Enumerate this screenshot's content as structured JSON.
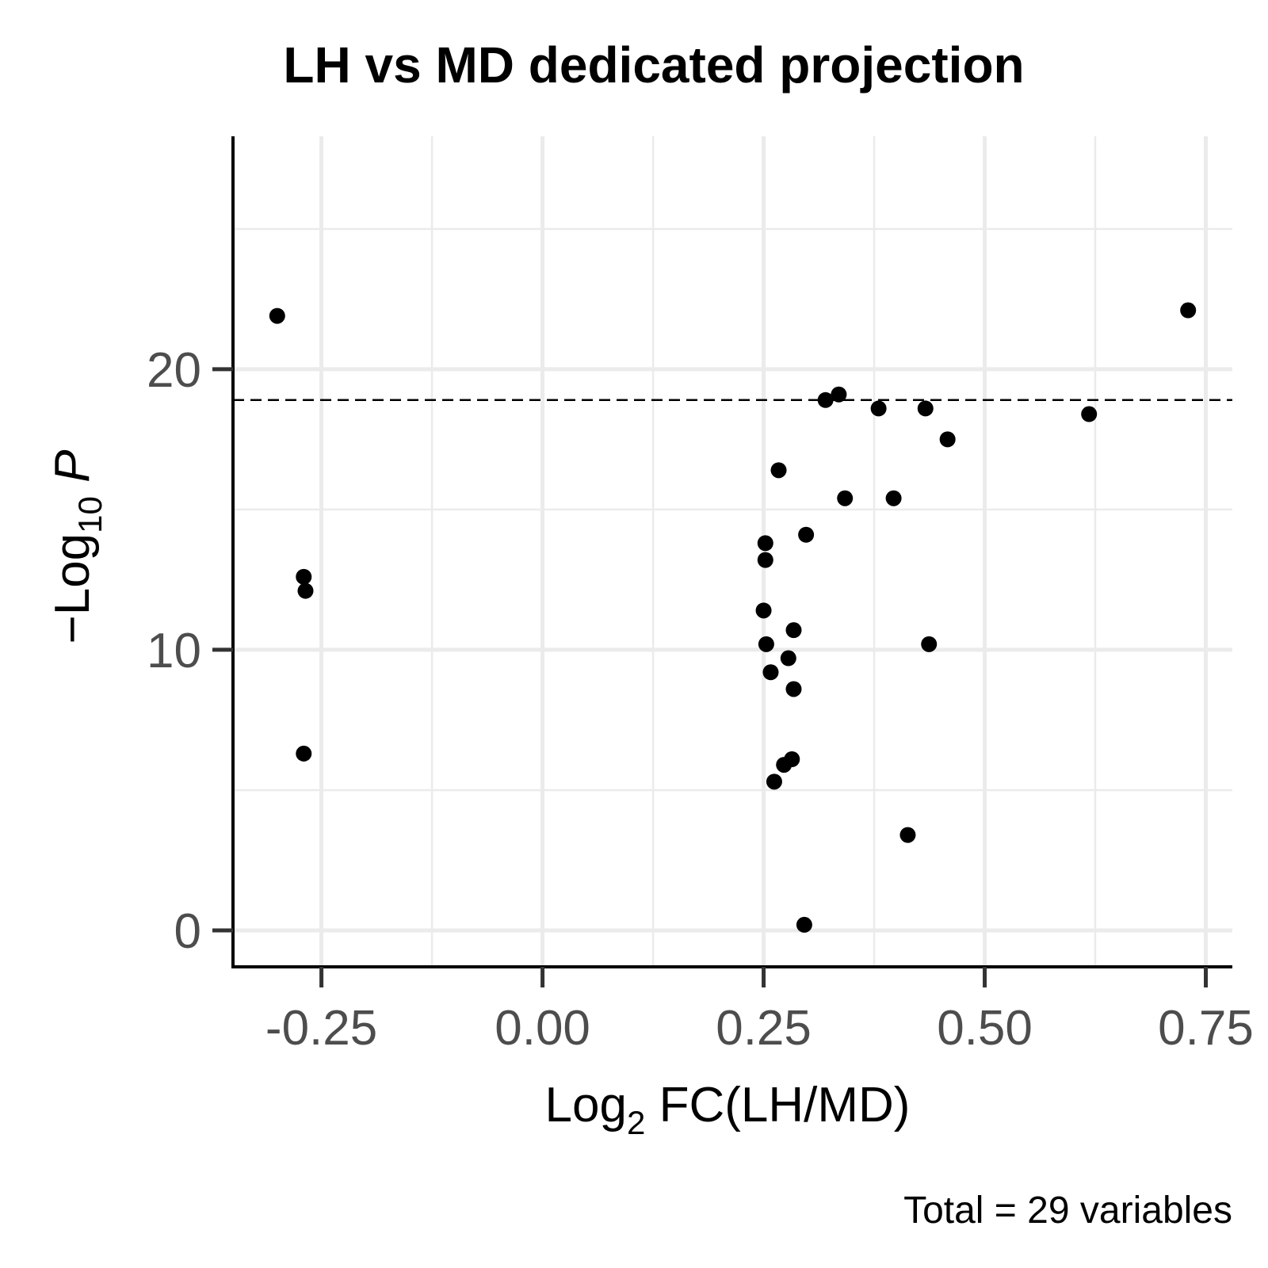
{
  "chart_data": {
    "type": "scatter",
    "title": "LH vs MD dedicated projection",
    "caption": "Total = 29 variables",
    "xlabel": {
      "prefix": "Log",
      "subscript": "2",
      "suffix": " FC(LH/MD)"
    },
    "ylabel": {
      "prefix": "−Log",
      "subscript": "10",
      "suffix": " P"
    },
    "xlim": [
      -0.35,
      0.78
    ],
    "ylim": [
      -1.3,
      28.3
    ],
    "x_ticks": [
      -0.25,
      0.0,
      0.25,
      0.5,
      0.75
    ],
    "x_tick_labels": [
      "-0.25",
      "0.00",
      "0.25",
      "0.50",
      "0.75"
    ],
    "y_ticks": [
      0,
      10,
      20
    ],
    "y_tick_labels": [
      "0",
      "10",
      "20"
    ],
    "grid": true,
    "threshold_y": 18.9,
    "points": [
      {
        "x": -0.3,
        "y": 21.9
      },
      {
        "x": 0.73,
        "y": 22.1
      },
      {
        "x": -0.27,
        "y": 12.6
      },
      {
        "x": -0.268,
        "y": 12.1
      },
      {
        "x": -0.27,
        "y": 6.3
      },
      {
        "x": 0.32,
        "y": 18.9
      },
      {
        "x": 0.335,
        "y": 19.1
      },
      {
        "x": 0.38,
        "y": 18.6
      },
      {
        "x": 0.433,
        "y": 18.6
      },
      {
        "x": 0.618,
        "y": 18.4
      },
      {
        "x": 0.458,
        "y": 17.5
      },
      {
        "x": 0.267,
        "y": 16.4
      },
      {
        "x": 0.342,
        "y": 15.4
      },
      {
        "x": 0.397,
        "y": 15.4
      },
      {
        "x": 0.298,
        "y": 14.1
      },
      {
        "x": 0.252,
        "y": 13.8
      },
      {
        "x": 0.252,
        "y": 13.2
      },
      {
        "x": 0.25,
        "y": 11.4
      },
      {
        "x": 0.284,
        "y": 10.7
      },
      {
        "x": 0.253,
        "y": 10.2
      },
      {
        "x": 0.437,
        "y": 10.2
      },
      {
        "x": 0.278,
        "y": 9.7
      },
      {
        "x": 0.258,
        "y": 9.2
      },
      {
        "x": 0.284,
        "y": 8.6
      },
      {
        "x": 0.282,
        "y": 6.1
      },
      {
        "x": 0.273,
        "y": 5.9
      },
      {
        "x": 0.262,
        "y": 5.3
      },
      {
        "x": 0.413,
        "y": 3.4
      },
      {
        "x": 0.296,
        "y": 0.2
      }
    ]
  }
}
